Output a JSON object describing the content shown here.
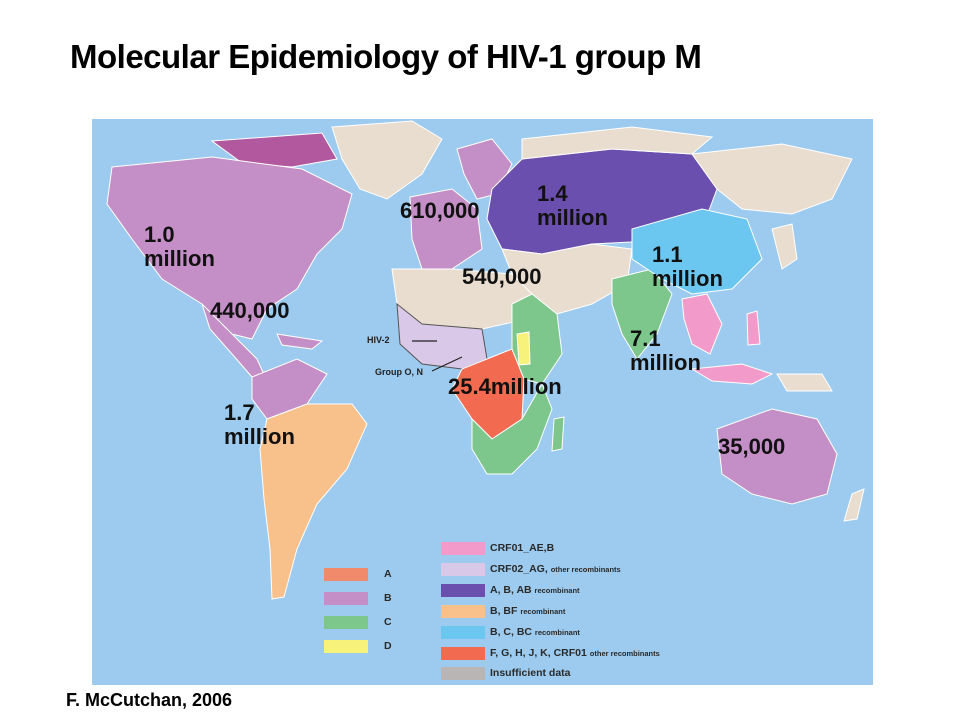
{
  "title": "Molecular Epidemiology of HIV-1 group M",
  "citation": "F. McCutchan, 2006",
  "colors": {
    "ocean": "#9ccbef",
    "A": "#f08a6a",
    "B": "#c48ec6",
    "C": "#7dc68c",
    "D": "#f7f27a",
    "CRF01_AE_B": "#f29ac9",
    "CRF02_AG": "#d9c8e8",
    "A_B_AB": "#6b4fae",
    "B_BF": "#f8c08a",
    "B_C_BC": "#6cc7f0",
    "F_G_H_J_K_CRF01": "#f26a4f",
    "insufficient": "#e9ddd0"
  },
  "region_labels": {
    "north_america": [
      "1.0",
      "million"
    ],
    "caribbean": "440,000",
    "south_america": [
      "1.7",
      "million"
    ],
    "western_europe": "610,000",
    "eastern_europe": [
      "1.4",
      "million"
    ],
    "north_africa_mideast": "540,000",
    "east_asia": [
      "1.1",
      "million"
    ],
    "south_se_asia": [
      "7.1",
      "million"
    ],
    "sub_saharan_africa": "25.4million",
    "oceania": "35,000"
  },
  "annotations": {
    "hiv2": "HIV-2",
    "group_o_n": "Group O, N"
  },
  "legend_left": [
    {
      "label": "A",
      "color_key": "A"
    },
    {
      "label": "B",
      "color_key": "B"
    },
    {
      "label": "C",
      "color_key": "C"
    },
    {
      "label": "D",
      "color_key": "D"
    }
  ],
  "legend_right": [
    {
      "label": "CRF01_AE,B",
      "small": "",
      "color_key": "CRF01_AE_B"
    },
    {
      "label": "CRF02_AG,",
      "small": "other recombinants",
      "color_key": "CRF02_AG"
    },
    {
      "label": "A, B, AB",
      "small": "recombinant",
      "color_key": "A_B_AB"
    },
    {
      "label": "B, BF",
      "small": "recombinant",
      "color_key": "B_BF"
    },
    {
      "label": "B, C, BC",
      "small": "recombinant",
      "color_key": "B_C_BC"
    },
    {
      "label": "F, G, H, J, K, CRF01",
      "small": "other recombinants",
      "color_key": "F_G_H_J_K_CRF01"
    },
    {
      "label": "Insufficient data",
      "small": "",
      "color_key": "insufficient"
    }
  ]
}
